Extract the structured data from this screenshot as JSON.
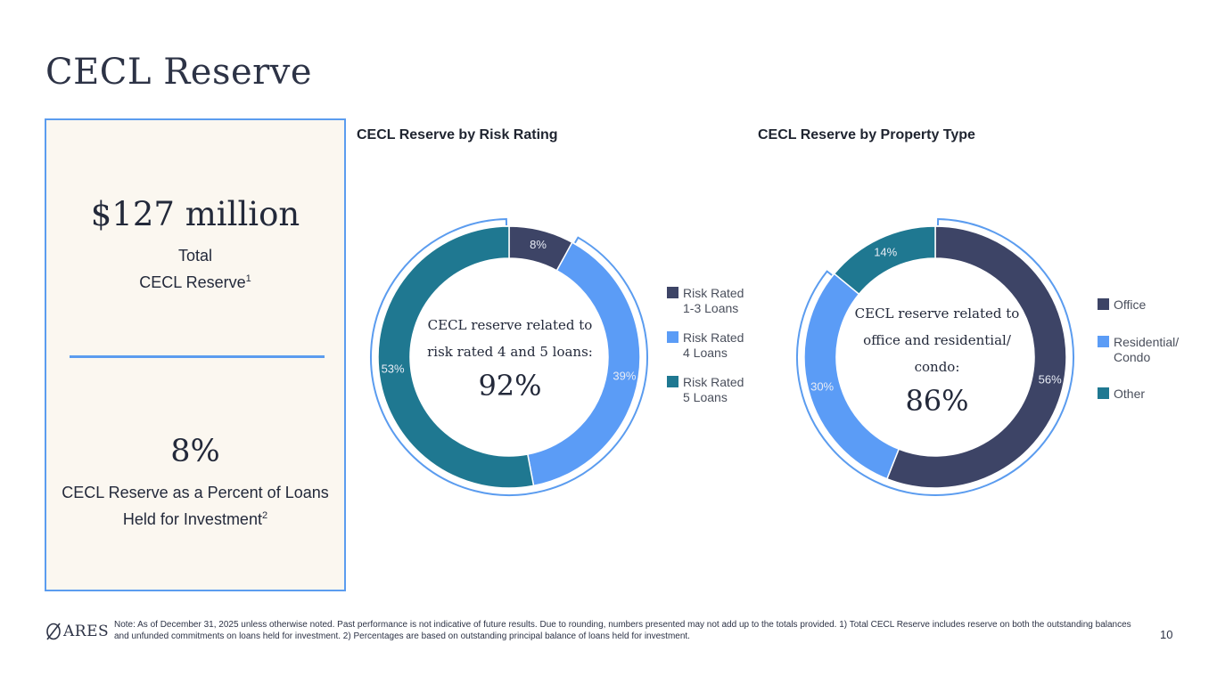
{
  "title": "CECL Reserve",
  "stats": {
    "total_amount": "$127 million",
    "total_label_line1": "Total",
    "total_label_line2": "CECL Reserve",
    "total_footnote_ref": "1",
    "percent_value": "8%",
    "percent_label_line1": "CECL Reserve as a Percent of Loans",
    "percent_label_line2": "Held for Investment",
    "percent_footnote_ref": "2"
  },
  "colors": {
    "navy": "#3d4466",
    "light_blue": "#5b9cf6",
    "teal": "#1f7891",
    "outline": "#5b9cef",
    "panel_bg": "#fbf7f0"
  },
  "chart_data": [
    {
      "type": "pie",
      "variant": "donut",
      "title": "CECL Reserve by Risk Rating",
      "categories": [
        "Risk Rated 1-3 Loans",
        "Risk Rated 4 Loans",
        "Risk Rated 5 Loans"
      ],
      "values": [
        8,
        39,
        53
      ],
      "labels": [
        "8%",
        "39%",
        "53%"
      ],
      "legend_lines": [
        [
          "Risk Rated",
          "1-3 Loans"
        ],
        [
          "Risk Rated",
          "4 Loans"
        ],
        [
          "Risk Rated",
          "5 Loans"
        ]
      ],
      "colors": [
        "#3d4466",
        "#5b9cf6",
        "#1f7891"
      ],
      "highlighted_categories": [
        "Risk Rated 4 Loans",
        "Risk Rated 5 Loans"
      ],
      "center_caption_lines": [
        "CECL reserve related to",
        "risk rated 4 and 5 loans:"
      ],
      "center_value": "92%",
      "legend_position": "right"
    },
    {
      "type": "pie",
      "variant": "donut",
      "title": "CECL Reserve by Property Type",
      "categories": [
        "Office",
        "Residential/ Condo",
        "Other"
      ],
      "values": [
        56,
        30,
        14
      ],
      "labels": [
        "56%",
        "30%",
        "14%"
      ],
      "legend_lines": [
        [
          "Office"
        ],
        [
          "Residential/",
          "Condo"
        ],
        [
          "Other"
        ]
      ],
      "colors": [
        "#3d4466",
        "#5b9cf6",
        "#1f7891"
      ],
      "highlighted_categories": [
        "Office",
        "Residential/ Condo"
      ],
      "center_caption_lines": [
        "CECL reserve related to",
        "office and residential/",
        "condo:"
      ],
      "center_value": "86%",
      "legend_position": "right"
    }
  ],
  "footer": {
    "note": "Note: As of December 31, 2025 unless otherwise noted. Past performance is not indicative of future results. Due to rounding, numbers presented may not add up to the totals provided. 1) Total CECL Reserve includes reserve on both the outstanding balances and unfunded commitments on loans held for investment. 2) Percentages are based on outstanding principal balance of loans held for investment.",
    "logo_text": "ARES",
    "logo_icon": "ares-logo-icon",
    "page_number": "10"
  }
}
